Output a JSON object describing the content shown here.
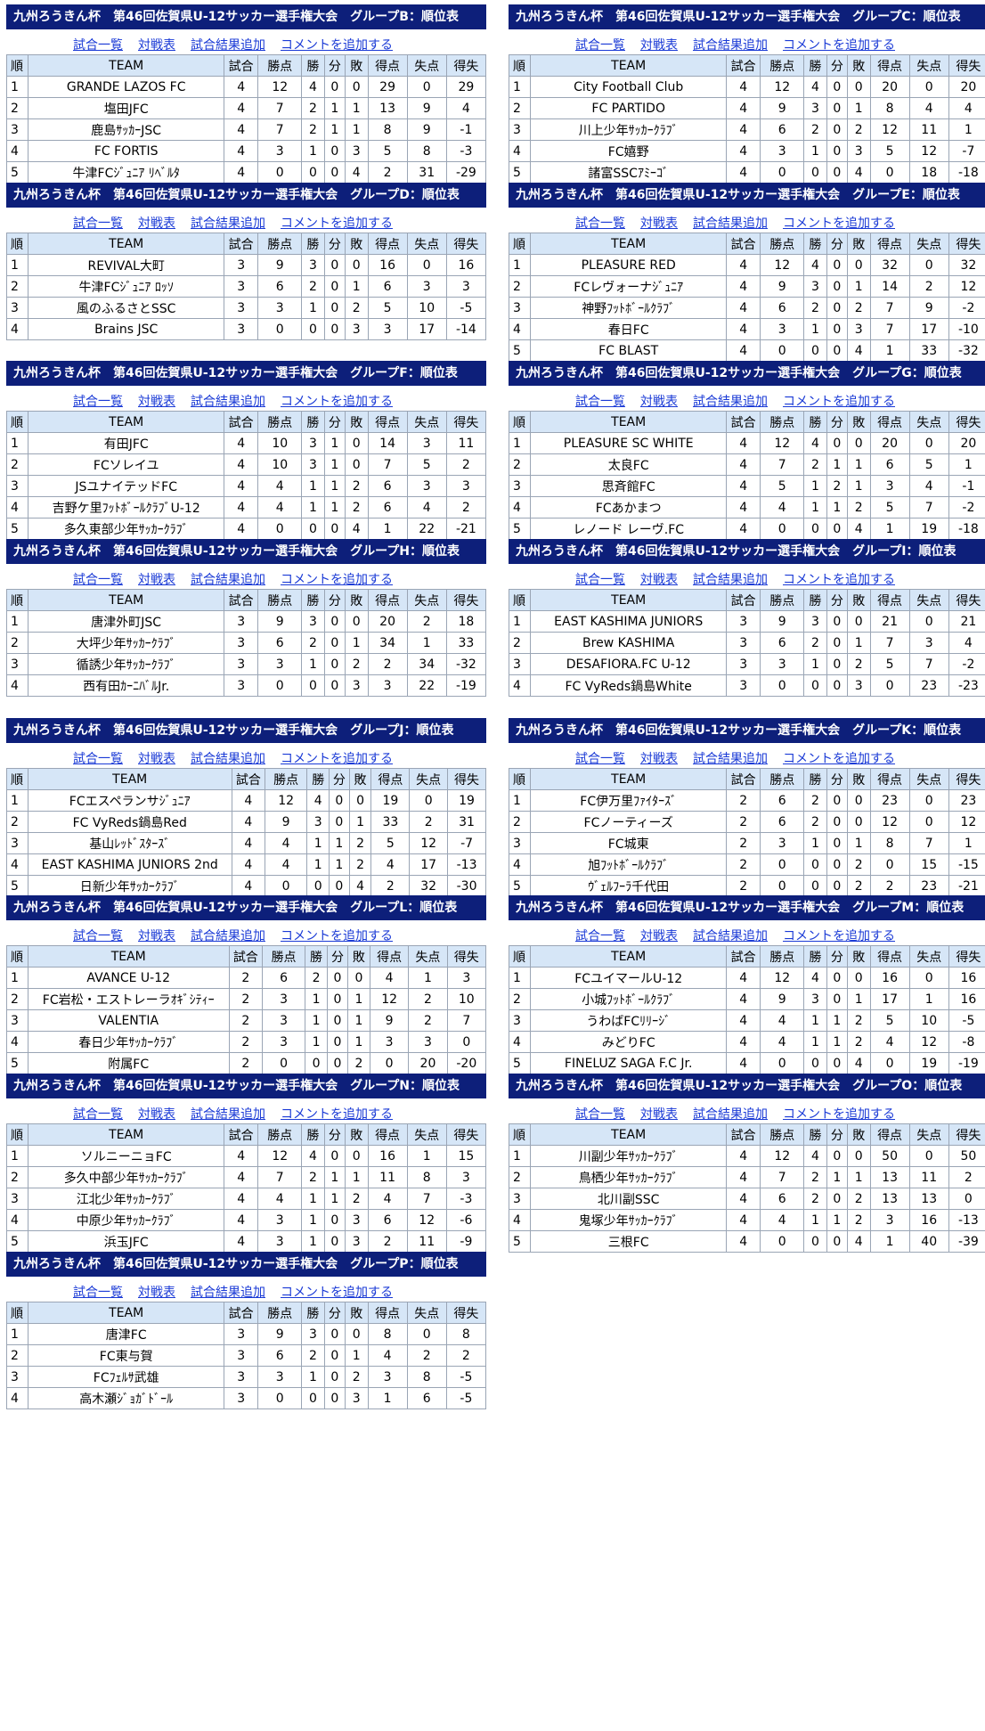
{
  "headers": [
    "順",
    "TEAM",
    "試合",
    "勝点",
    "勝",
    "分",
    "敗",
    "得点",
    "失点",
    "得失"
  ],
  "links": [
    "試合一覧",
    "対戦表",
    "試合結果追加",
    "コメントを追加する"
  ],
  "groups": [
    {
      "title": "九州ろうきん杯　第46回佐賀県U-12サッカー選手権大会　グループB：順位表",
      "rows": [
        [
          "1",
          "GRANDE LAZOS FC",
          "4",
          "12",
          "4",
          "0",
          "0",
          "29",
          "0",
          "29"
        ],
        [
          "2",
          "塩田JFC",
          "4",
          "7",
          "2",
          "1",
          "1",
          "13",
          "9",
          "4"
        ],
        [
          "3",
          "鹿島ｻｯｶｰJSC",
          "4",
          "7",
          "2",
          "1",
          "1",
          "8",
          "9",
          "-1"
        ],
        [
          "4",
          "FC FORTIS",
          "4",
          "3",
          "1",
          "0",
          "3",
          "5",
          "8",
          "-3"
        ],
        [
          "5",
          "牛津FCｼﾞｭﾆｱ ﾘﾍﾞﾙﾀ",
          "4",
          "0",
          "0",
          "0",
          "4",
          "2",
          "31",
          "-29"
        ]
      ]
    },
    {
      "title": "九州ろうきん杯　第46回佐賀県U-12サッカー選手権大会　グループC：順位表",
      "rows": [
        [
          "1",
          "City Football Club",
          "4",
          "12",
          "4",
          "0",
          "0",
          "20",
          "0",
          "20"
        ],
        [
          "2",
          "FC PARTIDO",
          "4",
          "9",
          "3",
          "0",
          "1",
          "8",
          "4",
          "4"
        ],
        [
          "3",
          "川上少年ｻｯｶｰｸﾗﾌﾞ",
          "4",
          "6",
          "2",
          "0",
          "2",
          "12",
          "11",
          "1"
        ],
        [
          "4",
          "FC嬉野",
          "4",
          "3",
          "1",
          "0",
          "3",
          "5",
          "12",
          "-7"
        ],
        [
          "5",
          "諸富SSCｱﾐｰｺﾞ",
          "4",
          "0",
          "0",
          "0",
          "4",
          "0",
          "18",
          "-18"
        ]
      ]
    },
    {
      "title": "九州ろうきん杯　第46回佐賀県U-12サッカー選手権大会　グループD：順位表",
      "rows": [
        [
          "1",
          "REVIVAL大町",
          "3",
          "9",
          "3",
          "0",
          "0",
          "16",
          "0",
          "16"
        ],
        [
          "2",
          "牛津FCｼﾞｭﾆｱ ﾛｯｿ",
          "3",
          "6",
          "2",
          "0",
          "1",
          "6",
          "3",
          "3"
        ],
        [
          "3",
          "風のふるさとSSC",
          "3",
          "3",
          "1",
          "0",
          "2",
          "5",
          "10",
          "-5"
        ],
        [
          "4",
          "Brains JSC",
          "3",
          "0",
          "0",
          "0",
          "3",
          "3",
          "17",
          "-14"
        ]
      ]
    },
    {
      "title": "九州ろうきん杯　第46回佐賀県U-12サッカー選手権大会　グループE：順位表",
      "rows": [
        [
          "1",
          "PLEASURE RED",
          "4",
          "12",
          "4",
          "0",
          "0",
          "32",
          "0",
          "32"
        ],
        [
          "2",
          "FCレヴォーナｼﾞｭﾆｱ",
          "4",
          "9",
          "3",
          "0",
          "1",
          "14",
          "2",
          "12"
        ],
        [
          "3",
          "神野ﾌｯﾄﾎﾞｰﾙｸﾗﾌﾞ",
          "4",
          "6",
          "2",
          "0",
          "2",
          "7",
          "9",
          "-2"
        ],
        [
          "4",
          "春日FC",
          "4",
          "3",
          "1",
          "0",
          "3",
          "7",
          "17",
          "-10"
        ],
        [
          "5",
          "FC BLAST",
          "4",
          "0",
          "0",
          "0",
          "4",
          "1",
          "33",
          "-32"
        ]
      ]
    },
    {
      "title": "九州ろうきん杯　第46回佐賀県U-12サッカー選手権大会　グループF：順位表",
      "rows": [
        [
          "1",
          "有田JFC",
          "4",
          "10",
          "3",
          "1",
          "0",
          "14",
          "3",
          "11"
        ],
        [
          "2",
          "FCソレイユ",
          "4",
          "10",
          "3",
          "1",
          "0",
          "7",
          "5",
          "2"
        ],
        [
          "3",
          "JSユナイテッドFC",
          "4",
          "4",
          "1",
          "1",
          "2",
          "6",
          "3",
          "3"
        ],
        [
          "4",
          "吉野ケ里ﾌｯﾄﾎﾞｰﾙｸﾗﾌﾞU-12",
          "4",
          "4",
          "1",
          "1",
          "2",
          "6",
          "4",
          "2"
        ],
        [
          "5",
          "多久東部少年ｻｯｶｰｸﾗﾌﾞ",
          "4",
          "0",
          "0",
          "0",
          "4",
          "1",
          "22",
          "-21"
        ]
      ]
    },
    {
      "title": "九州ろうきん杯　第46回佐賀県U-12サッカー選手権大会　グループG：順位表",
      "rows": [
        [
          "1",
          "PLEASURE SC WHITE",
          "4",
          "12",
          "4",
          "0",
          "0",
          "20",
          "0",
          "20"
        ],
        [
          "2",
          "太良FC",
          "4",
          "7",
          "2",
          "1",
          "1",
          "6",
          "5",
          "1"
        ],
        [
          "3",
          "思斉館FC",
          "4",
          "5",
          "1",
          "2",
          "1",
          "3",
          "4",
          "-1"
        ],
        [
          "4",
          "FCあかまつ",
          "4",
          "4",
          "1",
          "1",
          "2",
          "5",
          "7",
          "-2"
        ],
        [
          "5",
          "レノード レーヴ.FC",
          "4",
          "0",
          "0",
          "0",
          "4",
          "1",
          "19",
          "-18"
        ]
      ]
    },
    {
      "title": "九州ろうきん杯　第46回佐賀県U-12サッカー選手権大会　グループH：順位表",
      "rows": [
        [
          "1",
          "唐津外町JSC",
          "3",
          "9",
          "3",
          "0",
          "0",
          "20",
          "2",
          "18"
        ],
        [
          "2",
          "大坪少年ｻｯｶｰｸﾗﾌﾞ",
          "3",
          "6",
          "2",
          "0",
          "1",
          "34",
          "1",
          "33"
        ],
        [
          "3",
          "循誘少年ｻｯｶｰｸﾗﾌﾞ",
          "3",
          "3",
          "1",
          "0",
          "2",
          "2",
          "34",
          "-32"
        ],
        [
          "4",
          "西有田ｶｰﾆﾊﾞﾙJr.",
          "3",
          "0",
          "0",
          "0",
          "3",
          "3",
          "22",
          "-19"
        ]
      ]
    },
    {
      "title": "九州ろうきん杯　第46回佐賀県U-12サッカー選手権大会　グループI：順位表",
      "rows": [
        [
          "1",
          "EAST KASHIMA JUNIORS",
          "3",
          "9",
          "3",
          "0",
          "0",
          "21",
          "0",
          "21"
        ],
        [
          "2",
          "Brew KASHIMA",
          "3",
          "6",
          "2",
          "0",
          "1",
          "7",
          "3",
          "4"
        ],
        [
          "3",
          "DESAFIORA.FC U-12",
          "3",
          "3",
          "1",
          "0",
          "2",
          "5",
          "7",
          "-2"
        ],
        [
          "4",
          "FC VyReds鍋島White",
          "3",
          "0",
          "0",
          "0",
          "3",
          "0",
          "23",
          "-23"
        ]
      ]
    },
    {
      "title": "九州ろうきん杯　第46回佐賀県U-12サッカー選手権大会　グループJ：順位表",
      "rows": [
        [
          "1",
          "FCエスペランサｼﾞｭﾆｱ",
          "4",
          "12",
          "4",
          "0",
          "0",
          "19",
          "0",
          "19"
        ],
        [
          "2",
          "FC VyReds鍋島Red",
          "4",
          "9",
          "3",
          "0",
          "1",
          "33",
          "2",
          "31"
        ],
        [
          "3",
          "基山ﾚｯﾄﾞｽﾀｰｽﾞ",
          "4",
          "4",
          "1",
          "1",
          "2",
          "5",
          "12",
          "-7"
        ],
        [
          "4",
          "EAST KASHIMA JUNIORS 2nd",
          "4",
          "4",
          "1",
          "1",
          "2",
          "4",
          "17",
          "-13"
        ],
        [
          "5",
          "日新少年ｻｯｶｰｸﾗﾌﾞ",
          "4",
          "0",
          "0",
          "0",
          "4",
          "2",
          "32",
          "-30"
        ]
      ]
    },
    {
      "title": "九州ろうきん杯　第46回佐賀県U-12サッカー選手権大会　グループK：順位表",
      "rows": [
        [
          "1",
          "FC伊万里ﾌｧｲﾀｰｽﾞ",
          "2",
          "6",
          "2",
          "0",
          "0",
          "23",
          "0",
          "23"
        ],
        [
          "2",
          "FCノーティーズ",
          "2",
          "6",
          "2",
          "0",
          "0",
          "12",
          "0",
          "12"
        ],
        [
          "3",
          "FC城東",
          "2",
          "3",
          "1",
          "0",
          "1",
          "8",
          "7",
          "1"
        ],
        [
          "4",
          "旭ﾌｯﾄﾎﾞｰﾙｸﾗﾌﾞ",
          "2",
          "0",
          "0",
          "0",
          "2",
          "0",
          "15",
          "-15"
        ],
        [
          "5",
          "ｳﾞｪﾙﾌｰﾗ千代田",
          "2",
          "0",
          "0",
          "0",
          "2",
          "2",
          "23",
          "-21"
        ]
      ]
    },
    {
      "title": "九州ろうきん杯　第46回佐賀県U-12サッカー選手権大会　グループL：順位表",
      "rows": [
        [
          "1",
          "AVANCE U-12",
          "2",
          "6",
          "2",
          "0",
          "0",
          "4",
          "1",
          "3"
        ],
        [
          "2",
          "FC岩松・エストレーラｵｷﾞｼﾃｨｰ",
          "2",
          "3",
          "1",
          "0",
          "1",
          "12",
          "2",
          "10"
        ],
        [
          "3",
          "VALENTIA",
          "2",
          "3",
          "1",
          "0",
          "1",
          "9",
          "2",
          "7"
        ],
        [
          "4",
          "春日少年ｻｯｶｰｸﾗﾌﾞ",
          "2",
          "3",
          "1",
          "0",
          "1",
          "3",
          "3",
          "0"
        ],
        [
          "5",
          "附属FC",
          "2",
          "0",
          "0",
          "0",
          "2",
          "0",
          "20",
          "-20"
        ]
      ]
    },
    {
      "title": "九州ろうきん杯　第46回佐賀県U-12サッカー選手権大会　グループM：順位表",
      "rows": [
        [
          "1",
          "FCユイマールU-12",
          "4",
          "12",
          "4",
          "0",
          "0",
          "16",
          "0",
          "16"
        ],
        [
          "2",
          "小城ﾌｯﾄﾎﾞｰﾙｸﾗﾌﾞ",
          "4",
          "9",
          "3",
          "0",
          "1",
          "17",
          "1",
          "16"
        ],
        [
          "3",
          "うわばFCﾘﾘｰｼﾞ",
          "4",
          "4",
          "1",
          "1",
          "2",
          "5",
          "10",
          "-5"
        ],
        [
          "4",
          "みどりFC",
          "4",
          "4",
          "1",
          "1",
          "2",
          "4",
          "12",
          "-8"
        ],
        [
          "5",
          "FINELUZ SAGA F.C Jr.",
          "4",
          "0",
          "0",
          "0",
          "4",
          "0",
          "19",
          "-19"
        ]
      ]
    },
    {
      "title": "九州ろうきん杯　第46回佐賀県U-12サッカー選手権大会　グループN：順位表",
      "rows": [
        [
          "1",
          "ソルニーニョFC",
          "4",
          "12",
          "4",
          "0",
          "0",
          "16",
          "1",
          "15"
        ],
        [
          "2",
          "多久中部少年ｻｯｶｰｸﾗﾌﾞ",
          "4",
          "7",
          "2",
          "1",
          "1",
          "11",
          "8",
          "3"
        ],
        [
          "3",
          "江北少年ｻｯｶｰｸﾗﾌﾞ",
          "4",
          "4",
          "1",
          "1",
          "2",
          "4",
          "7",
          "-3"
        ],
        [
          "4",
          "中原少年ｻｯｶｰｸﾗﾌﾞ",
          "4",
          "3",
          "1",
          "0",
          "3",
          "6",
          "12",
          "-6"
        ],
        [
          "5",
          "浜玉JFC",
          "4",
          "3",
          "1",
          "0",
          "3",
          "2",
          "11",
          "-9"
        ]
      ]
    },
    {
      "title": "九州ろうきん杯　第46回佐賀県U-12サッカー選手権大会　グループO：順位表",
      "rows": [
        [
          "1",
          "川副少年ｻｯｶｰｸﾗﾌﾞ",
          "4",
          "12",
          "4",
          "0",
          "0",
          "50",
          "0",
          "50"
        ],
        [
          "2",
          "鳥栖少年ｻｯｶｰｸﾗﾌﾞ",
          "4",
          "7",
          "2",
          "1",
          "1",
          "13",
          "11",
          "2"
        ],
        [
          "3",
          "北川副SSC",
          "4",
          "6",
          "2",
          "0",
          "2",
          "13",
          "13",
          "0"
        ],
        [
          "4",
          "鬼塚少年ｻｯｶｰｸﾗﾌﾞ",
          "4",
          "4",
          "1",
          "1",
          "2",
          "3",
          "16",
          "-13"
        ],
        [
          "5",
          "三根FC",
          "4",
          "0",
          "0",
          "0",
          "4",
          "1",
          "40",
          "-39"
        ]
      ]
    },
    {
      "title": "九州ろうきん杯　第46回佐賀県U-12サッカー選手権大会　グループP：順位表",
      "rows": [
        [
          "1",
          "唐津FC",
          "3",
          "9",
          "3",
          "0",
          "0",
          "8",
          "0",
          "8"
        ],
        [
          "2",
          "FC東与賀",
          "3",
          "6",
          "2",
          "0",
          "1",
          "4",
          "2",
          "2"
        ],
        [
          "3",
          "FCﾌｪﾙｻ武雄",
          "3",
          "3",
          "1",
          "0",
          "2",
          "3",
          "8",
          "-5"
        ],
        [
          "4",
          "高木瀬ｼﾞｮｶﾞﾄﾞｰﾙ",
          "3",
          "0",
          "0",
          "0",
          "3",
          "1",
          "6",
          "-5"
        ]
      ]
    }
  ]
}
